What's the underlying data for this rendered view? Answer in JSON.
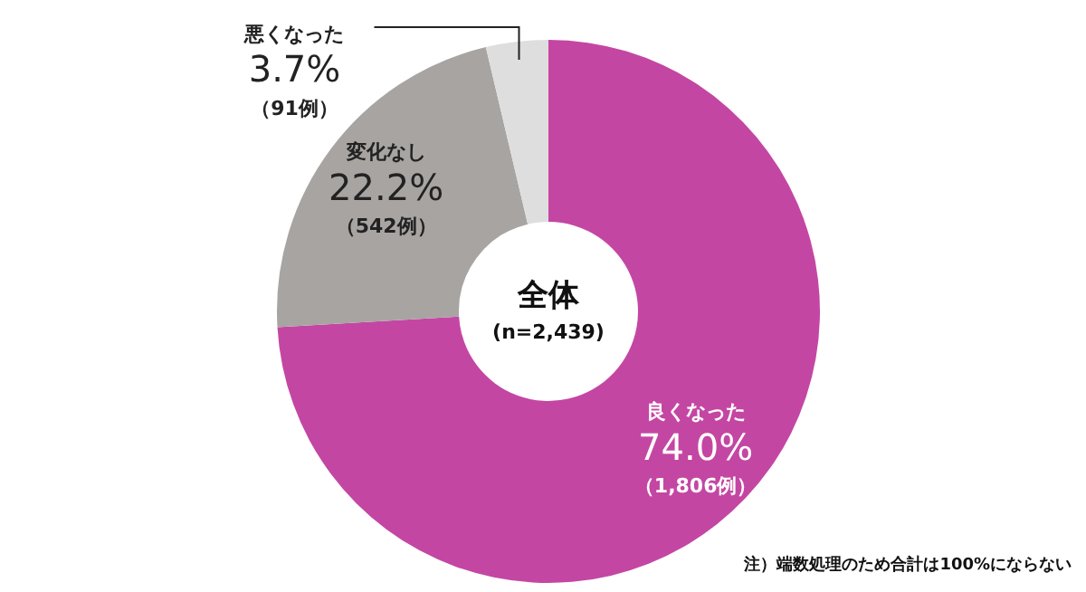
{
  "chart_data": {
    "type": "donut",
    "title": "全体",
    "subtitle": "(n=2,439)",
    "categories": [
      "良くなった",
      "変化なし",
      "悪くなった"
    ],
    "values": [
      74.0,
      22.2,
      3.7
    ],
    "colors": [
      "#c446a3",
      "#a8a4a2",
      "#dedede"
    ],
    "value_labels": [
      "74.0%",
      "22.2%",
      "3.7%"
    ],
    "annotations": [
      {
        "text": "（1,806例）",
        "x": "良くなった"
      },
      {
        "text": "（542例）",
        "x": "変化なし"
      },
      {
        "text": "（91例）",
        "x": "悪くなった"
      },
      "注）端数処理のため合計は100%にならない"
    ]
  }
}
